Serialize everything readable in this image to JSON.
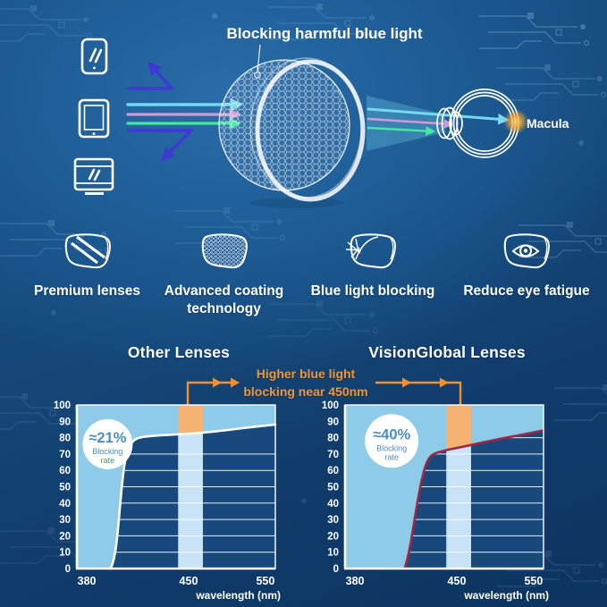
{
  "colors": {
    "background_top": "#2a6da9",
    "background_bottom": "#0d3460",
    "circuit_trace": "#9ccaee",
    "device_icon": "#ffffff",
    "reflect_arrow_indigo": "#3d39d4",
    "ray_cyan": "#74d8f2",
    "ray_pink": "#d09ad6",
    "ray_green": "#48e4a6",
    "lens_outline": "#eaf6fd",
    "macula_glow": "#f5a832",
    "plot_bg": "#17497c",
    "area_fill": "#8ecbe8",
    "band_fill": "#c7e3f5",
    "band_highlight_orange": "#f6b272",
    "annotation_orange": "#ef9133",
    "curve_other": "#ffffff",
    "curve_visionglobal": "#9c2746",
    "badge_bg": "#ffffff",
    "badge_text_blue": "#4a8ec6",
    "axis_text": "#ffffff"
  },
  "top": {
    "heading": "Blocking harmful blue light",
    "macula_label": "Macula",
    "device_icons": [
      "smartphone",
      "tablet",
      "monitor"
    ]
  },
  "features": [
    {
      "label": "Premium lenses"
    },
    {
      "label": "Advanced coating technology"
    },
    {
      "label": "Blue light blocking"
    },
    {
      "label": "Reduce eye fatigue"
    }
  ],
  "annotation": {
    "line1": "Higher blue light",
    "line2": "blocking near 450nm"
  },
  "chart_data": [
    {
      "type": "area",
      "title": "Other Lenses",
      "xlabel": "wavelength (nm)",
      "badge": {
        "value": "≈21%",
        "label_line1": "Blocking",
        "label_line2": "rate",
        "fx": 0.155,
        "v": 76,
        "r": 28
      },
      "y_ticks": [
        0,
        10,
        20,
        30,
        40,
        50,
        60,
        70,
        80,
        90,
        100
      ],
      "gridlines": [
        10,
        20,
        30,
        40,
        50,
        60,
        70
      ],
      "x_ticks": [
        {
          "label": "380",
          "f": 0.05
        },
        {
          "label": "450",
          "f": 0.563
        },
        {
          "label": "550",
          "f": 0.95
        }
      ],
      "x_range_nm": [
        380,
        550
      ],
      "y_range_percent": [
        0,
        100
      ],
      "band": {
        "f0": 0.51,
        "f1": 0.635,
        "center_nm": 450
      },
      "curve": {
        "color": "#ffffff",
        "blocking_rate_at_450nm_percent": 21,
        "points_fraction_percent": [
          [
            0.17,
            0
          ],
          [
            0.185,
            4
          ],
          [
            0.2,
            15
          ],
          [
            0.215,
            35
          ],
          [
            0.23,
            55
          ],
          [
            0.245,
            68
          ],
          [
            0.265,
            75
          ],
          [
            0.29,
            79
          ],
          [
            0.33,
            80.6
          ],
          [
            0.4,
            81.3
          ],
          [
            0.51,
            82
          ],
          [
            0.635,
            83
          ],
          [
            0.75,
            84.5
          ],
          [
            0.88,
            86.5
          ],
          [
            1,
            88
          ]
        ]
      }
    },
    {
      "type": "area",
      "title": "VisionGlobal Lenses",
      "xlabel": "wavelength (nm)",
      "badge": {
        "value": "≈40%",
        "label_line1": "Blocking",
        "label_line2": "rate",
        "fx": 0.235,
        "v": 78,
        "r": 30
      },
      "y_ticks": [
        0,
        10,
        20,
        30,
        40,
        50,
        60,
        70,
        80,
        90,
        100
      ],
      "gridlines": [
        10,
        20,
        30,
        40,
        50,
        60,
        70,
        80
      ],
      "x_ticks": [
        {
          "label": "380",
          "f": 0.05
        },
        {
          "label": "450",
          "f": 0.563
        },
        {
          "label": "550",
          "f": 0.95
        }
      ],
      "x_range_nm": [
        380,
        550
      ],
      "y_range_percent": [
        0,
        100
      ],
      "band": {
        "f0": 0.51,
        "f1": 0.635,
        "center_nm": 450
      },
      "curve": {
        "color": "#9c2746",
        "blocking_rate_at_450nm_percent": 40,
        "points_fraction_percent": [
          [
            0.3,
            0
          ],
          [
            0.315,
            6
          ],
          [
            0.33,
            15
          ],
          [
            0.345,
            26
          ],
          [
            0.365,
            41
          ],
          [
            0.385,
            54
          ],
          [
            0.405,
            63
          ],
          [
            0.425,
            68
          ],
          [
            0.45,
            70.5
          ],
          [
            0.51,
            72.5
          ],
          [
            0.575,
            74
          ],
          [
            0.635,
            75.5
          ],
          [
            0.72,
            77.8
          ],
          [
            0.81,
            80
          ],
          [
            0.9,
            82
          ],
          [
            1,
            84.5
          ]
        ]
      }
    }
  ]
}
